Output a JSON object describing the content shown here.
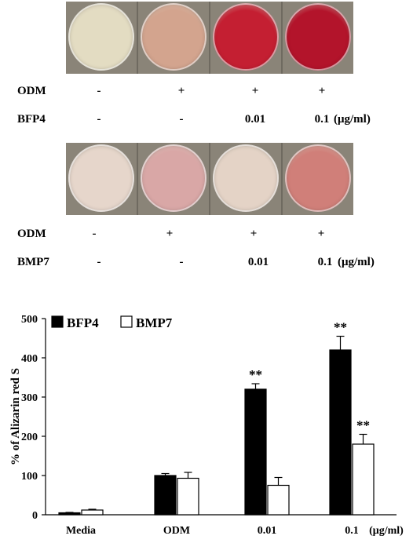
{
  "panel_top": {
    "row1": {
      "label": "ODM",
      "values": [
        "-",
        "+",
        "+",
        "+"
      ]
    },
    "row2": {
      "label": "BFP4",
      "values": [
        "-",
        "-",
        "0.01",
        "0.1"
      ],
      "unit": "(μg/ml)"
    },
    "dish_colors": [
      "#e3dcc2",
      "#d3a48e",
      "#c41f32",
      "#b3142b"
    ]
  },
  "panel_mid": {
    "row1": {
      "label": "ODM",
      "values": [
        "-",
        "+",
        "+",
        "+"
      ]
    },
    "row2": {
      "label": "BMP7",
      "values": [
        "-",
        "-",
        "0.01",
        "0.1"
      ],
      "unit": "(μg/ml)"
    },
    "dish_colors": [
      "#e6d6cb",
      "#d9a7a6",
      "#e4d3c6",
      "#d07f79"
    ]
  },
  "chart_data": {
    "type": "bar",
    "categories": [
      "Media",
      "ODM",
      "0.01",
      "0.1"
    ],
    "x_unit": "(μg/ml)",
    "series": [
      {
        "name": "BFP4",
        "color": "#000000",
        "values": [
          5,
          100,
          320,
          420
        ],
        "errors": [
          1,
          5,
          14,
          35
        ],
        "sig": [
          "",
          "",
          "**",
          "**"
        ]
      },
      {
        "name": "BMP7",
        "color": "#ffffff",
        "values": [
          12,
          93,
          75,
          180
        ],
        "errors": [
          2,
          15,
          20,
          25
        ],
        "sig": [
          "",
          "",
          "",
          "**"
        ]
      }
    ],
    "ylabel": "% of Alizarin red S",
    "yticks": [
      0,
      100,
      200,
      300,
      400,
      500
    ],
    "ylim": [
      0,
      500
    ],
    "legend": "top-left"
  }
}
